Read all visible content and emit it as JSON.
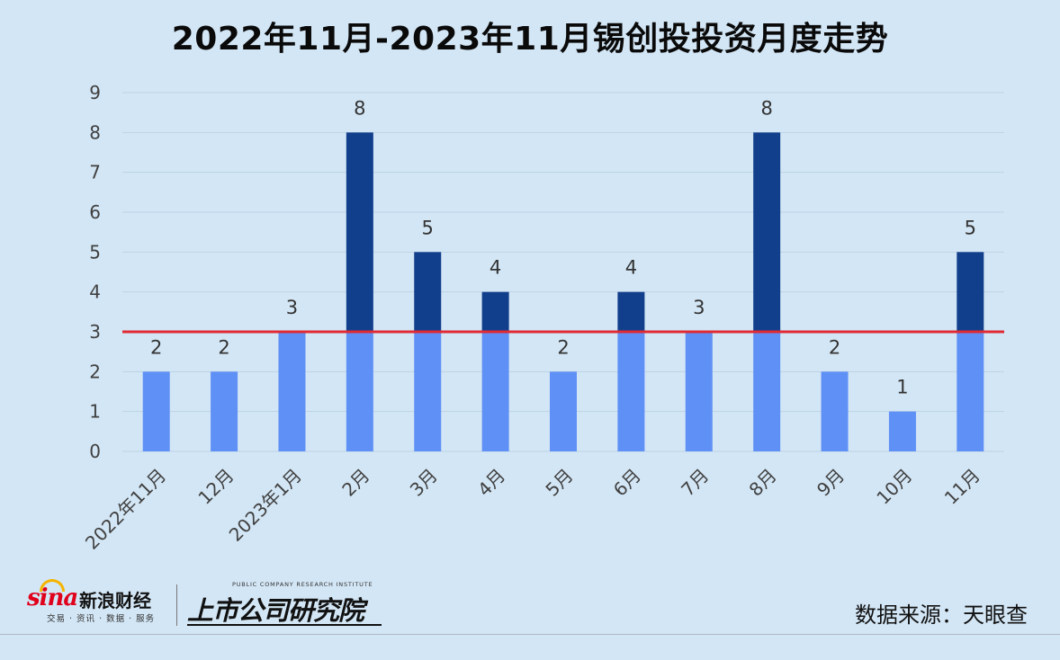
{
  "title": "2022年11月-2023年11月锡创投投资月度走势",
  "chart_data": {
    "type": "bar",
    "categories": [
      "2022年11月",
      "12月",
      "2023年1月",
      "2月",
      "3月",
      "4月",
      "5月",
      "6月",
      "7月",
      "8月",
      "9月",
      "10月",
      "11月"
    ],
    "values": [
      2,
      2,
      3,
      8,
      5,
      4,
      2,
      4,
      3,
      8,
      2,
      1,
      5
    ],
    "ylim": [
      0,
      9
    ],
    "yticks": [
      0,
      1,
      2,
      3,
      4,
      5,
      6,
      7,
      8,
      9
    ],
    "reference_line": 3,
    "grid": true,
    "legend": "none",
    "colors": {
      "below_reference": "#5f90f5",
      "above_reference": "#123f8c",
      "reference_line": "#e02a34",
      "grid": "#bcd3e6",
      "tick_text": "#404040"
    }
  },
  "footer": {
    "sina_logo": "sina",
    "sina_cn": "新浪财经",
    "sina_sub": "交易 · 资讯 · 数据 · 服务",
    "institute_en": "PUBLIC COMPANY RESEARCH INSTITUTE",
    "institute_cn": "上市公司研究院",
    "source": "数据来源：天眼查"
  }
}
